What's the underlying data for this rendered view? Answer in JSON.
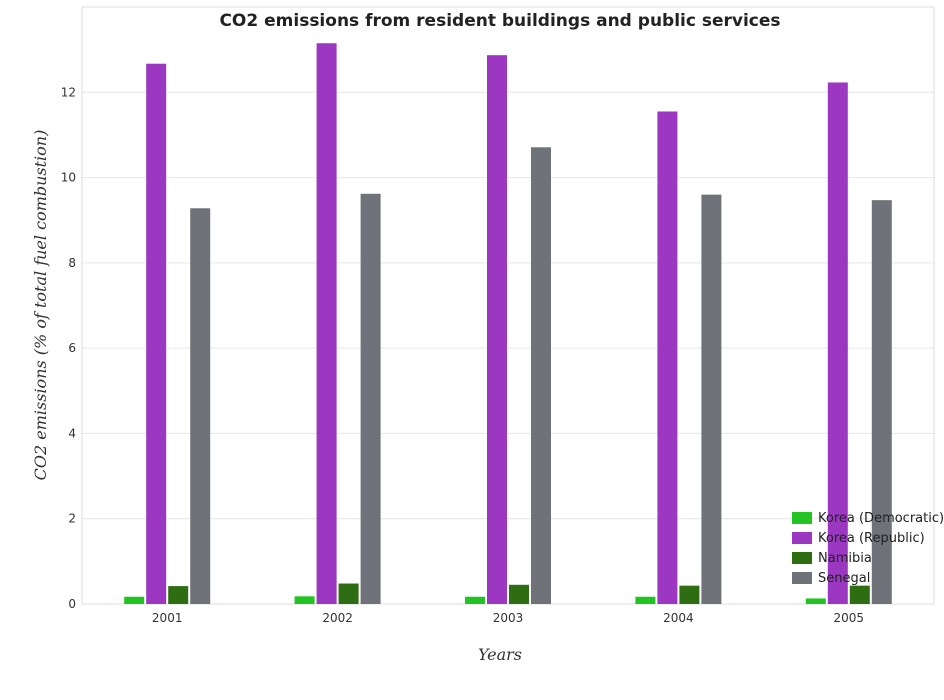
{
  "chart_data": {
    "type": "bar",
    "title": "CO2 emissions from resident buildings and public services",
    "xlabel": "Years",
    "ylabel": "CO2 emissions (% of total fuel combustion)",
    "categories": [
      "2001",
      "2002",
      "2003",
      "2004",
      "2005"
    ],
    "ylim": [
      0,
      14
    ],
    "yticks": [
      0,
      2,
      4,
      6,
      8,
      10,
      12
    ],
    "grid": true,
    "legend_position": "bottom-right",
    "series": [
      {
        "name": "Korea (Democratic)",
        "color": "#22c322",
        "values": [
          0.17,
          0.18,
          0.17,
          0.17,
          0.13
        ]
      },
      {
        "name": "Korea (Republic)",
        "color": "#9b37c0",
        "values": [
          12.67,
          13.15,
          12.87,
          11.55,
          12.23
        ]
      },
      {
        "name": "Namibia",
        "color": "#2f6d12",
        "values": [
          0.42,
          0.48,
          0.45,
          0.43,
          0.43
        ]
      },
      {
        "name": "Senegal",
        "color": "#6f7279",
        "values": [
          9.28,
          9.62,
          10.71,
          9.6,
          9.47
        ]
      }
    ]
  }
}
